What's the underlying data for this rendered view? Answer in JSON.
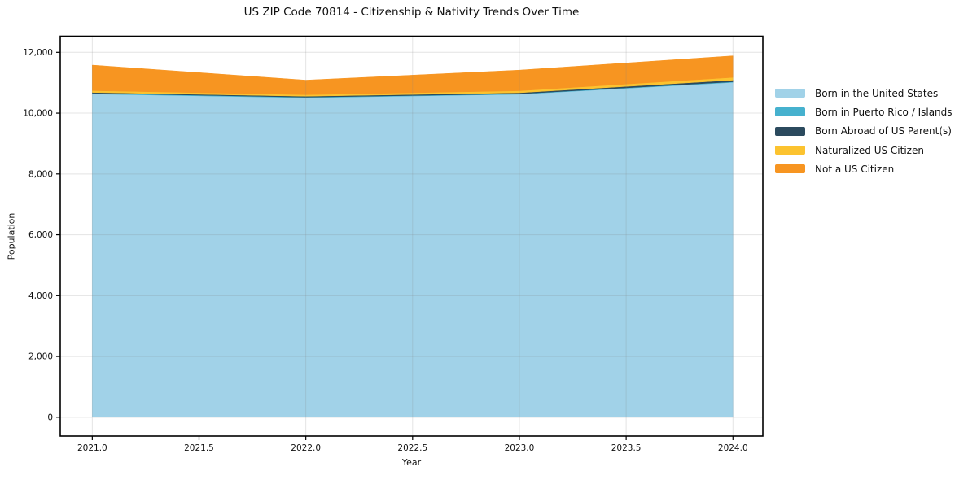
{
  "chart_data": {
    "type": "area",
    "stacked": true,
    "title": "US ZIP Code 70814 - Citizenship & Nativity Trends Over Time",
    "xlabel": "Year",
    "ylabel": "Population",
    "x": [
      2021,
      2022,
      2023,
      2024
    ],
    "series": [
      {
        "name": "Born in the United States",
        "color": "#a1d2e8",
        "values": [
          10630,
          10505,
          10620,
          11010
        ]
      },
      {
        "name": "Born in Puerto Rico / Islands",
        "color": "#46b1ce",
        "values": [
          25,
          20,
          15,
          20
        ]
      },
      {
        "name": "Born Abroad of US Parent(s)",
        "color": "#2b4a5e",
        "values": [
          25,
          30,
          35,
          55
        ]
      },
      {
        "name": "Naturalized US Citizen",
        "color": "#fcc32f",
        "values": [
          60,
          50,
          65,
          90
        ]
      },
      {
        "name": "Not a US Citizen",
        "color": "#f79521",
        "values": [
          840,
          480,
          680,
          710
        ]
      }
    ],
    "x_ticks": {
      "values": [
        2021.0,
        2021.5,
        2022.0,
        2022.5,
        2023.0,
        2023.5,
        2024.0
      ],
      "labels": [
        "2021.0",
        "2021.5",
        "2022.0",
        "2022.5",
        "2023.0",
        "2023.5",
        "2024.0"
      ]
    },
    "y_ticks": {
      "values": [
        0,
        2000,
        4000,
        6000,
        8000,
        10000,
        12000
      ],
      "labels": [
        "0",
        "2,000",
        "4,000",
        "6,000",
        "8,000",
        "10,000",
        "12,000"
      ]
    },
    "xlim": [
      2020.85,
      2024.14
    ],
    "ylim": [
      -620,
      12530
    ],
    "grid": true,
    "legend_position": "right-outside"
  }
}
